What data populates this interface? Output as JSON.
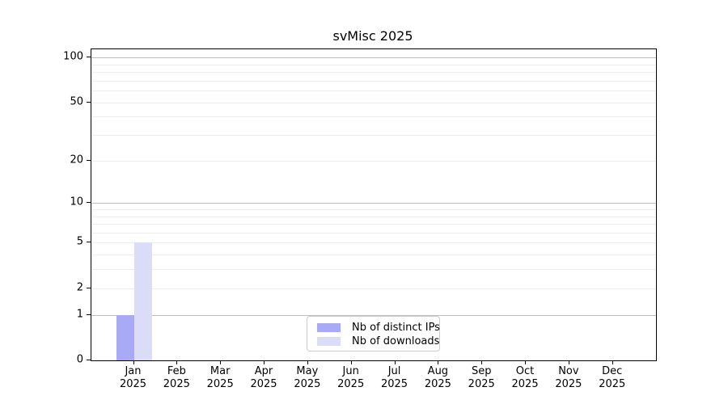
{
  "chart_data": {
    "type": "bar",
    "title": "svMisc 2025",
    "categories": [
      "Jan",
      "Feb",
      "Mar",
      "Apr",
      "May",
      "Jun",
      "Jul",
      "Aug",
      "Sep",
      "Oct",
      "Nov",
      "Dec"
    ],
    "x_sublabel": "2025",
    "series": [
      {
        "name": "Nb of distinct IPs",
        "color": "#a9aaf5",
        "values": [
          1,
          0,
          0,
          0,
          0,
          0,
          0,
          0,
          0,
          0,
          0,
          0
        ]
      },
      {
        "name": "Nb of downloads",
        "color": "#dadcf8",
        "values": [
          5,
          0,
          0,
          0,
          0,
          0,
          0,
          0,
          0,
          0,
          0,
          0
        ]
      }
    ],
    "yscale": "log1p",
    "ylim": [
      0,
      114
    ],
    "ytick_labels": [
      "0",
      "1",
      "2",
      "5",
      "10",
      "20",
      "50",
      "100"
    ],
    "ytick_values": [
      0,
      1,
      2,
      5,
      10,
      20,
      50,
      100
    ],
    "grid_minor_values": [
      2,
      3,
      4,
      5,
      6,
      7,
      8,
      9,
      20,
      30,
      40,
      50,
      60,
      70,
      80,
      90
    ],
    "grid_major_values": [
      1,
      10,
      100
    ],
    "grid": "horizontal",
    "legend_position": "lower center"
  },
  "colors": {
    "axis": "#000000",
    "grid_major": "#bdbdbd",
    "grid_minor": "#ededed",
    "background": "#ffffff"
  }
}
